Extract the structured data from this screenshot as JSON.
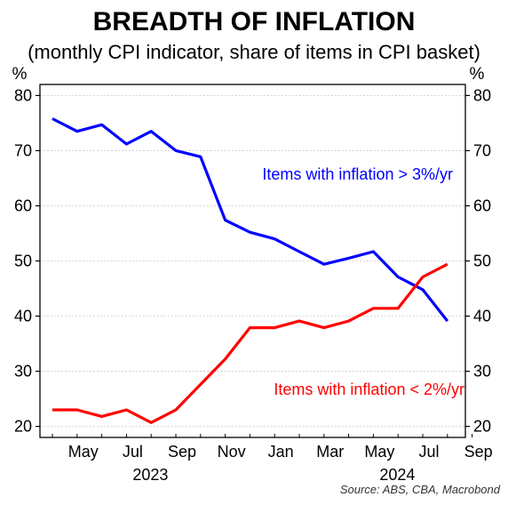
{
  "chart_data": {
    "type": "line",
    "title": "BREADTH OF INFLATION",
    "subtitle": "(monthly CPI indicator, share of items in CPI basket)",
    "y_unit_left": "%",
    "y_unit_right": "%",
    "ylim": [
      18,
      82
    ],
    "yticks": [
      "20",
      "30",
      "40",
      "50",
      "60",
      "70",
      "80"
    ],
    "x_month_labels": [
      "May",
      "Jul",
      "Sep",
      "Nov",
      "Jan",
      "Mar",
      "May",
      "Jul",
      "Sep"
    ],
    "x_year_labels": [
      "2023",
      "2024"
    ],
    "x": [
      "2023-04",
      "2023-05",
      "2023-06",
      "2023-07",
      "2023-08",
      "2023-09",
      "2023-10",
      "2023-11",
      "2023-12",
      "2024-01",
      "2024-02",
      "2024-03",
      "2024-04",
      "2024-05",
      "2024-06",
      "2024-07",
      "2024-08"
    ],
    "grid": true,
    "series": [
      {
        "name": "Items with inflation > 3%/yr",
        "color": "#0000ff",
        "values": [
          75.8,
          73.5,
          74.7,
          71.2,
          73.5,
          70.0,
          68.9,
          57.4,
          55.2,
          54.0,
          51.7,
          49.4,
          50.5,
          51.7,
          47.1,
          44.8,
          39.1
        ]
      },
      {
        "name": "Items with inflation < 2%/yr",
        "color": "#ff0000",
        "values": [
          23.0,
          23.0,
          21.8,
          23.0,
          20.7,
          23.0,
          27.6,
          32.2,
          37.9,
          37.9,
          39.1,
          37.9,
          39.1,
          41.4,
          41.4,
          47.1,
          49.4
        ]
      }
    ],
    "source": "Source: ABS, CBA, Macrobond"
  }
}
